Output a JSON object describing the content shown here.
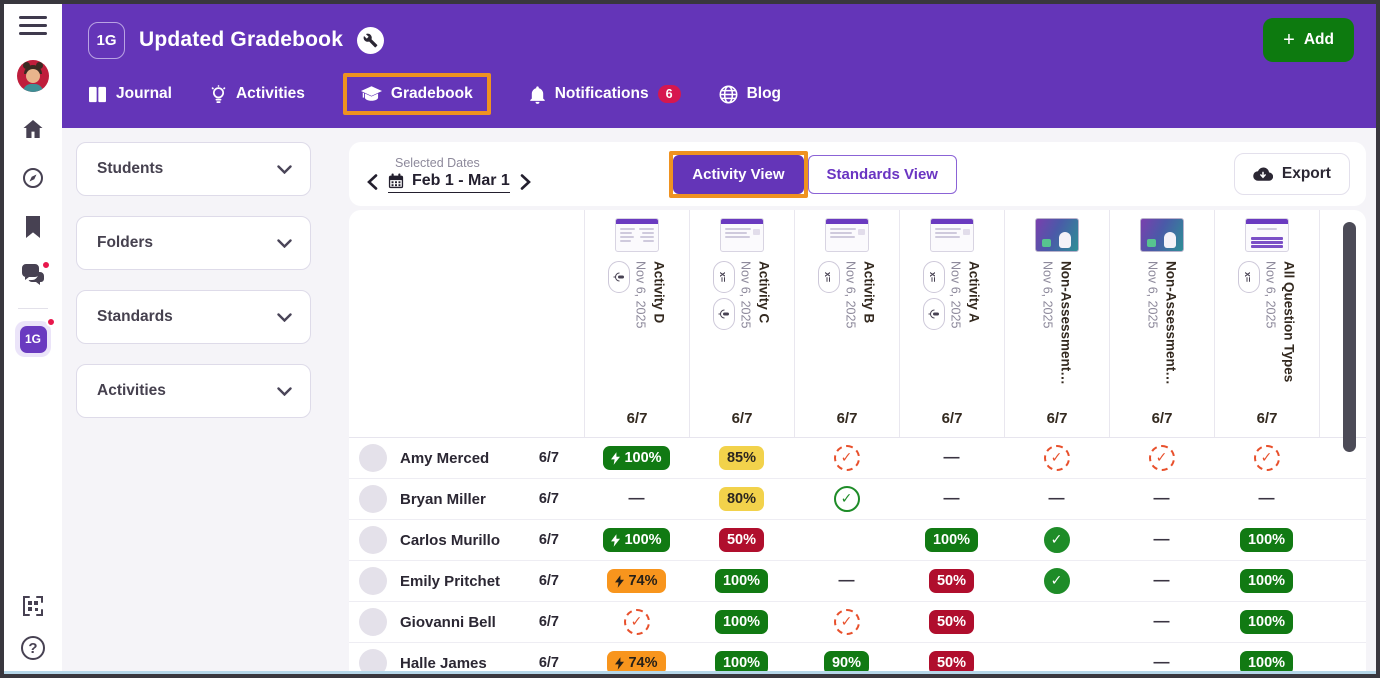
{
  "header": {
    "class_badge": "1G",
    "title": "Updated Gradebook",
    "add_label": "Add",
    "tabs": [
      {
        "label": "Journal"
      },
      {
        "label": "Activities"
      },
      {
        "label": "Gradebook",
        "highlighted": true
      },
      {
        "label": "Notifications",
        "badge": "6"
      },
      {
        "label": "Blog"
      }
    ]
  },
  "sidebar": {
    "class_badge": "1G",
    "help_label": "?"
  },
  "filters": [
    {
      "label": "Students"
    },
    {
      "label": "Folders"
    },
    {
      "label": "Standards"
    },
    {
      "label": "Activities"
    }
  ],
  "toolbar": {
    "selected_dates_label": "Selected Dates",
    "date_range": "Feb 1 - Mar 1",
    "view_buttons": [
      {
        "label": "Activity View",
        "active": true,
        "highlighted": true
      },
      {
        "label": "Standards View",
        "active": false
      }
    ],
    "export_label": "Export"
  },
  "gradebook": {
    "columns": [
      {
        "title": "Activity D",
        "date": "Nov 6, 2025",
        "score": "6/7",
        "icons": [
          "audio"
        ],
        "thumb": "form-two-col"
      },
      {
        "title": "Activity C",
        "date": "Nov 6, 2025",
        "score": "6/7",
        "icons": [
          "math",
          "audio"
        ],
        "thumb": "form-text"
      },
      {
        "title": "Activity B",
        "date": "Nov 6, 2025",
        "score": "6/7",
        "icons": [
          "math"
        ],
        "thumb": "form-text"
      },
      {
        "title": "Activity A",
        "date": "Nov 6, 2025",
        "score": "6/7",
        "icons": [
          "math",
          "audio"
        ],
        "thumb": "form-text"
      },
      {
        "title": "Non-Assessment…",
        "date": "Nov 6, 2025",
        "score": "6/7",
        "icons": [],
        "thumb": "scene"
      },
      {
        "title": "Non-Assessment…",
        "date": "Nov 6, 2025",
        "score": "6/7",
        "icons": [],
        "thumb": "scene"
      },
      {
        "title": "All Question Types",
        "date": "Nov 6, 2025",
        "score": "6/7",
        "icons": [
          "math"
        ],
        "thumb": "form-table"
      }
    ],
    "students": [
      {
        "name": "Amy Merced",
        "score": "6/7",
        "cells": [
          {
            "type": "badge",
            "color": "green",
            "text": "100%",
            "bolt": true
          },
          {
            "type": "badge",
            "color": "yellow",
            "text": "85%"
          },
          {
            "type": "check",
            "style": "dashed-orange"
          },
          {
            "type": "dash"
          },
          {
            "type": "check",
            "style": "dashed-orange"
          },
          {
            "type": "check",
            "style": "dashed-orange"
          },
          {
            "type": "check",
            "style": "dashed-orange"
          }
        ]
      },
      {
        "name": "Bryan Miller",
        "score": "6/7",
        "cells": [
          {
            "type": "dash"
          },
          {
            "type": "badge",
            "color": "yellow",
            "text": "80%"
          },
          {
            "type": "check",
            "style": "outline-green"
          },
          {
            "type": "dash"
          },
          {
            "type": "dash"
          },
          {
            "type": "dash"
          },
          {
            "type": "dash"
          }
        ]
      },
      {
        "name": "Carlos Murillo",
        "score": "6/7",
        "cells": [
          {
            "type": "badge",
            "color": "green",
            "text": "100%",
            "bolt": true
          },
          {
            "type": "badge",
            "color": "red",
            "text": "50%"
          },
          {
            "type": "empty"
          },
          {
            "type": "badge",
            "color": "green",
            "text": "100%"
          },
          {
            "type": "check",
            "style": "filled-green"
          },
          {
            "type": "dash"
          },
          {
            "type": "badge",
            "color": "green",
            "text": "100%"
          }
        ]
      },
      {
        "name": "Emily Pritchet",
        "score": "6/7",
        "cells": [
          {
            "type": "badge",
            "color": "orange",
            "text": "74%",
            "bolt": true
          },
          {
            "type": "badge",
            "color": "green",
            "text": "100%"
          },
          {
            "type": "dash"
          },
          {
            "type": "badge",
            "color": "red",
            "text": "50%"
          },
          {
            "type": "check",
            "style": "filled-green"
          },
          {
            "type": "dash"
          },
          {
            "type": "badge",
            "color": "green",
            "text": "100%"
          }
        ]
      },
      {
        "name": "Giovanni Bell",
        "score": "6/7",
        "cells": [
          {
            "type": "check",
            "style": "dashed-orange"
          },
          {
            "type": "badge",
            "color": "green",
            "text": "100%"
          },
          {
            "type": "check",
            "style": "dashed-orange"
          },
          {
            "type": "badge",
            "color": "red",
            "text": "50%"
          },
          {
            "type": "empty"
          },
          {
            "type": "dash"
          },
          {
            "type": "badge",
            "color": "green",
            "text": "100%"
          }
        ]
      },
      {
        "name": "Halle James",
        "score": "6/7",
        "cells": [
          {
            "type": "badge",
            "color": "orange",
            "text": "74%",
            "bolt": true
          },
          {
            "type": "badge",
            "color": "green",
            "text": "100%"
          },
          {
            "type": "badge",
            "color": "green",
            "text": "90%"
          },
          {
            "type": "badge",
            "color": "red",
            "text": "50%"
          },
          {
            "type": "empty"
          },
          {
            "type": "dash"
          },
          {
            "type": "badge",
            "color": "green",
            "text": "100%"
          }
        ]
      }
    ]
  },
  "colors": {
    "brand_purple": "#6435b8",
    "highlight_orange": "#ef9220",
    "add_button_green": "#0d7a0f",
    "badge_green": "#117a13",
    "badge_yellow": "#f2d24b",
    "badge_red": "#b00e2d",
    "badge_orange": "#f8951d",
    "check_dashed_orange": "#e8502c",
    "check_green": "#1e8c28",
    "notification_red": "#d6174f"
  }
}
